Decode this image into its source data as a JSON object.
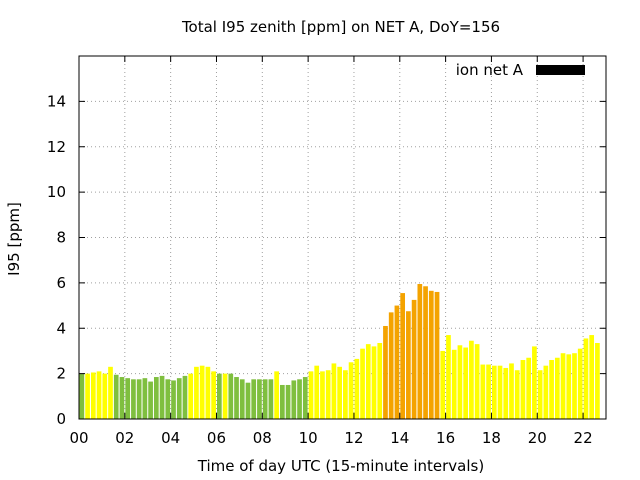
{
  "chart_data": {
    "type": "bar",
    "title": "Total I95 zenith [ppm] on NET A, DoY=156",
    "xlabel": "Time of day UTC (15-minute intervals)",
    "ylabel": "I95 [ppm]",
    "xlim": [
      0,
      23
    ],
    "ylim": [
      0,
      16
    ],
    "x_tick_labels": [
      "00",
      "02",
      "04",
      "06",
      "08",
      "10",
      "12",
      "14",
      "16",
      "18",
      "20",
      "22"
    ],
    "y_tick_labels": [
      "0",
      "2",
      "4",
      "6",
      "8",
      "10",
      "12",
      "14"
    ],
    "grid": true,
    "legend": {
      "position": "top-right",
      "entry": "ion net A",
      "color": "#000000"
    },
    "colors": {
      "green": "#7fbf3f",
      "yellow": "#ffff00",
      "orange": "#f4a300"
    },
    "series": [
      {
        "name": "ion net A",
        "interval_hours": 0.25,
        "values": [
          2.0,
          2.0,
          2.05,
          2.1,
          2.0,
          2.3,
          1.95,
          1.85,
          1.8,
          1.75,
          1.75,
          1.8,
          1.65,
          1.85,
          1.9,
          1.75,
          1.7,
          1.8,
          1.9,
          2.0,
          2.3,
          2.35,
          2.3,
          2.1,
          2.0,
          2.0,
          2.0,
          1.85,
          1.75,
          1.6,
          1.75,
          1.75,
          1.75,
          1.75,
          2.1,
          1.5,
          1.5,
          1.7,
          1.75,
          1.85,
          2.1,
          2.35,
          2.1,
          2.15,
          2.45,
          2.3,
          2.15,
          2.5,
          2.65,
          3.1,
          3.3,
          3.2,
          3.35,
          4.1,
          4.7,
          5.0,
          5.55,
          4.75,
          5.25,
          5.95,
          5.85,
          5.65,
          5.6,
          3.0,
          3.7,
          3.05,
          3.25,
          3.15,
          3.45,
          3.3,
          2.4,
          2.4,
          2.35,
          2.35,
          2.25,
          2.45,
          2.15,
          2.6,
          2.7,
          3.2,
          2.15,
          2.35,
          2.6,
          2.7,
          2.9,
          2.85,
          2.9,
          3.1,
          3.55,
          3.7,
          3.35
        ],
        "levels": [
          "green",
          "yellow",
          "yellow",
          "yellow",
          "yellow",
          "yellow",
          "green",
          "green",
          "green",
          "green",
          "green",
          "green",
          "green",
          "green",
          "green",
          "green",
          "green",
          "green",
          "green",
          "yellow",
          "yellow",
          "yellow",
          "yellow",
          "yellow",
          "green",
          "yellow",
          "green",
          "green",
          "green",
          "green",
          "green",
          "green",
          "green",
          "green",
          "yellow",
          "green",
          "green",
          "green",
          "green",
          "green",
          "yellow",
          "yellow",
          "yellow",
          "yellow",
          "yellow",
          "yellow",
          "yellow",
          "yellow",
          "yellow",
          "yellow",
          "yellow",
          "yellow",
          "yellow",
          "orange",
          "orange",
          "orange",
          "orange",
          "orange",
          "orange",
          "orange",
          "orange",
          "orange",
          "orange",
          "yellow",
          "yellow",
          "yellow",
          "yellow",
          "yellow",
          "yellow",
          "yellow",
          "yellow",
          "yellow",
          "yellow",
          "yellow",
          "yellow",
          "yellow",
          "yellow",
          "yellow",
          "yellow",
          "yellow",
          "yellow",
          "yellow",
          "yellow",
          "yellow",
          "yellow",
          "yellow",
          "yellow",
          "yellow",
          "yellow",
          "yellow",
          "yellow"
        ]
      }
    ]
  }
}
